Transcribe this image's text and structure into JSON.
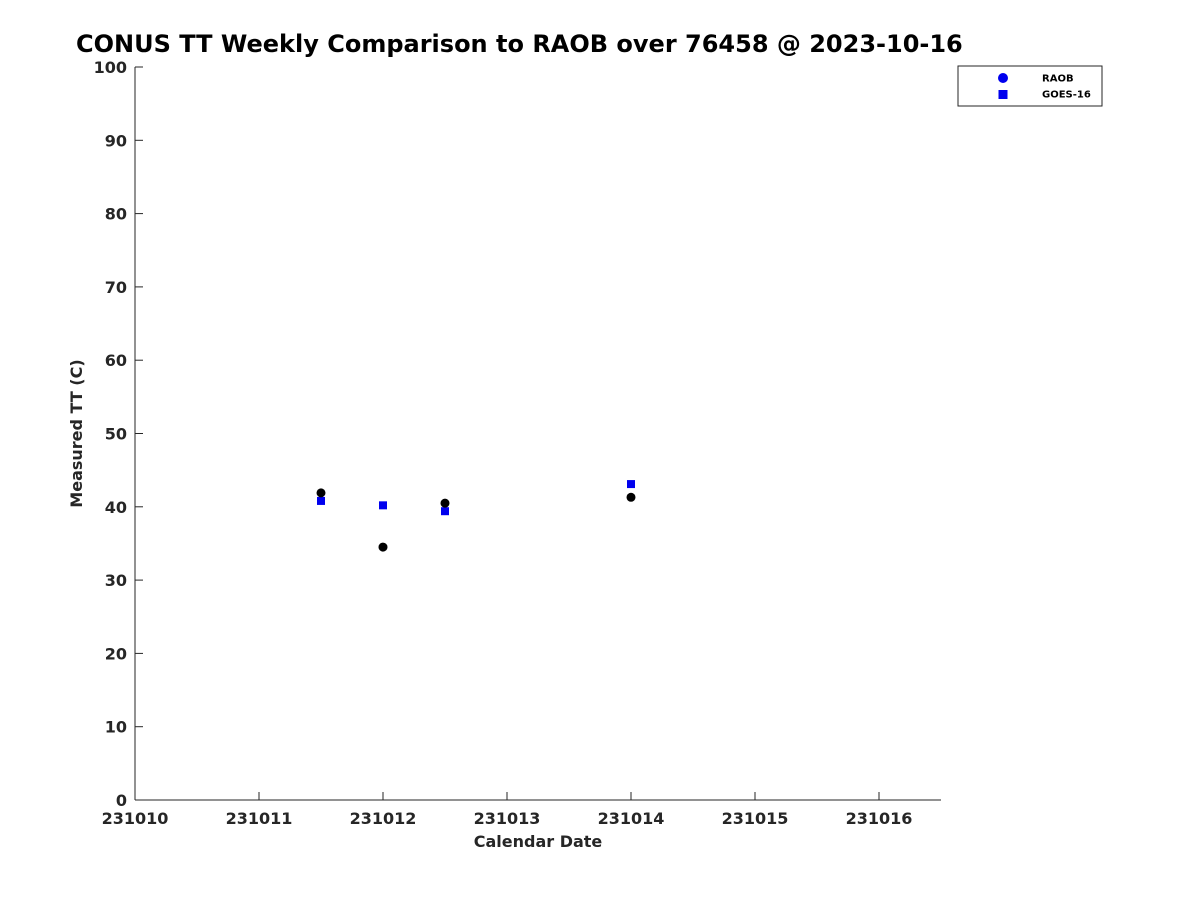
{
  "chart_data": {
    "type": "scatter",
    "title": "CONUS TT Weekly Comparison to RAOB over 76458 @ 2023-10-16",
    "xlabel": "Calendar Date",
    "ylabel": "Measured TT (C)",
    "xlim": [
      231010,
      231016.5
    ],
    "ylim": [
      0,
      100
    ],
    "xticks": [
      231010,
      231011,
      231012,
      231013,
      231014,
      231015,
      231016
    ],
    "xtick_labels": [
      "231010",
      "231011",
      "231012",
      "231013",
      "231014",
      "231015",
      "231016"
    ],
    "yticks": [
      0,
      10,
      20,
      30,
      40,
      50,
      60,
      70,
      80,
      90,
      100
    ],
    "yticks_labels": [
      "0",
      "10",
      "20",
      "30",
      "40",
      "50",
      "60",
      "70",
      "80",
      "90",
      "100"
    ],
    "legend_position": "top-right",
    "grid": false,
    "series": [
      {
        "name": "RAOB",
        "marker": "circle",
        "color": "#000000",
        "legend_color": "#0000ee",
        "points": [
          {
            "x": 231011.5,
            "y": 41.9
          },
          {
            "x": 231012.0,
            "y": 34.5
          },
          {
            "x": 231012.5,
            "y": 40.5
          },
          {
            "x": 231014.0,
            "y": 41.3
          }
        ]
      },
      {
        "name": "GOES-16",
        "marker": "square",
        "color": "#0000ee",
        "legend_color": "#0000ee",
        "points": [
          {
            "x": 231011.5,
            "y": 40.8
          },
          {
            "x": 231012.0,
            "y": 40.2
          },
          {
            "x": 231012.5,
            "y": 39.4
          },
          {
            "x": 231014.0,
            "y": 43.1
          }
        ]
      }
    ]
  }
}
